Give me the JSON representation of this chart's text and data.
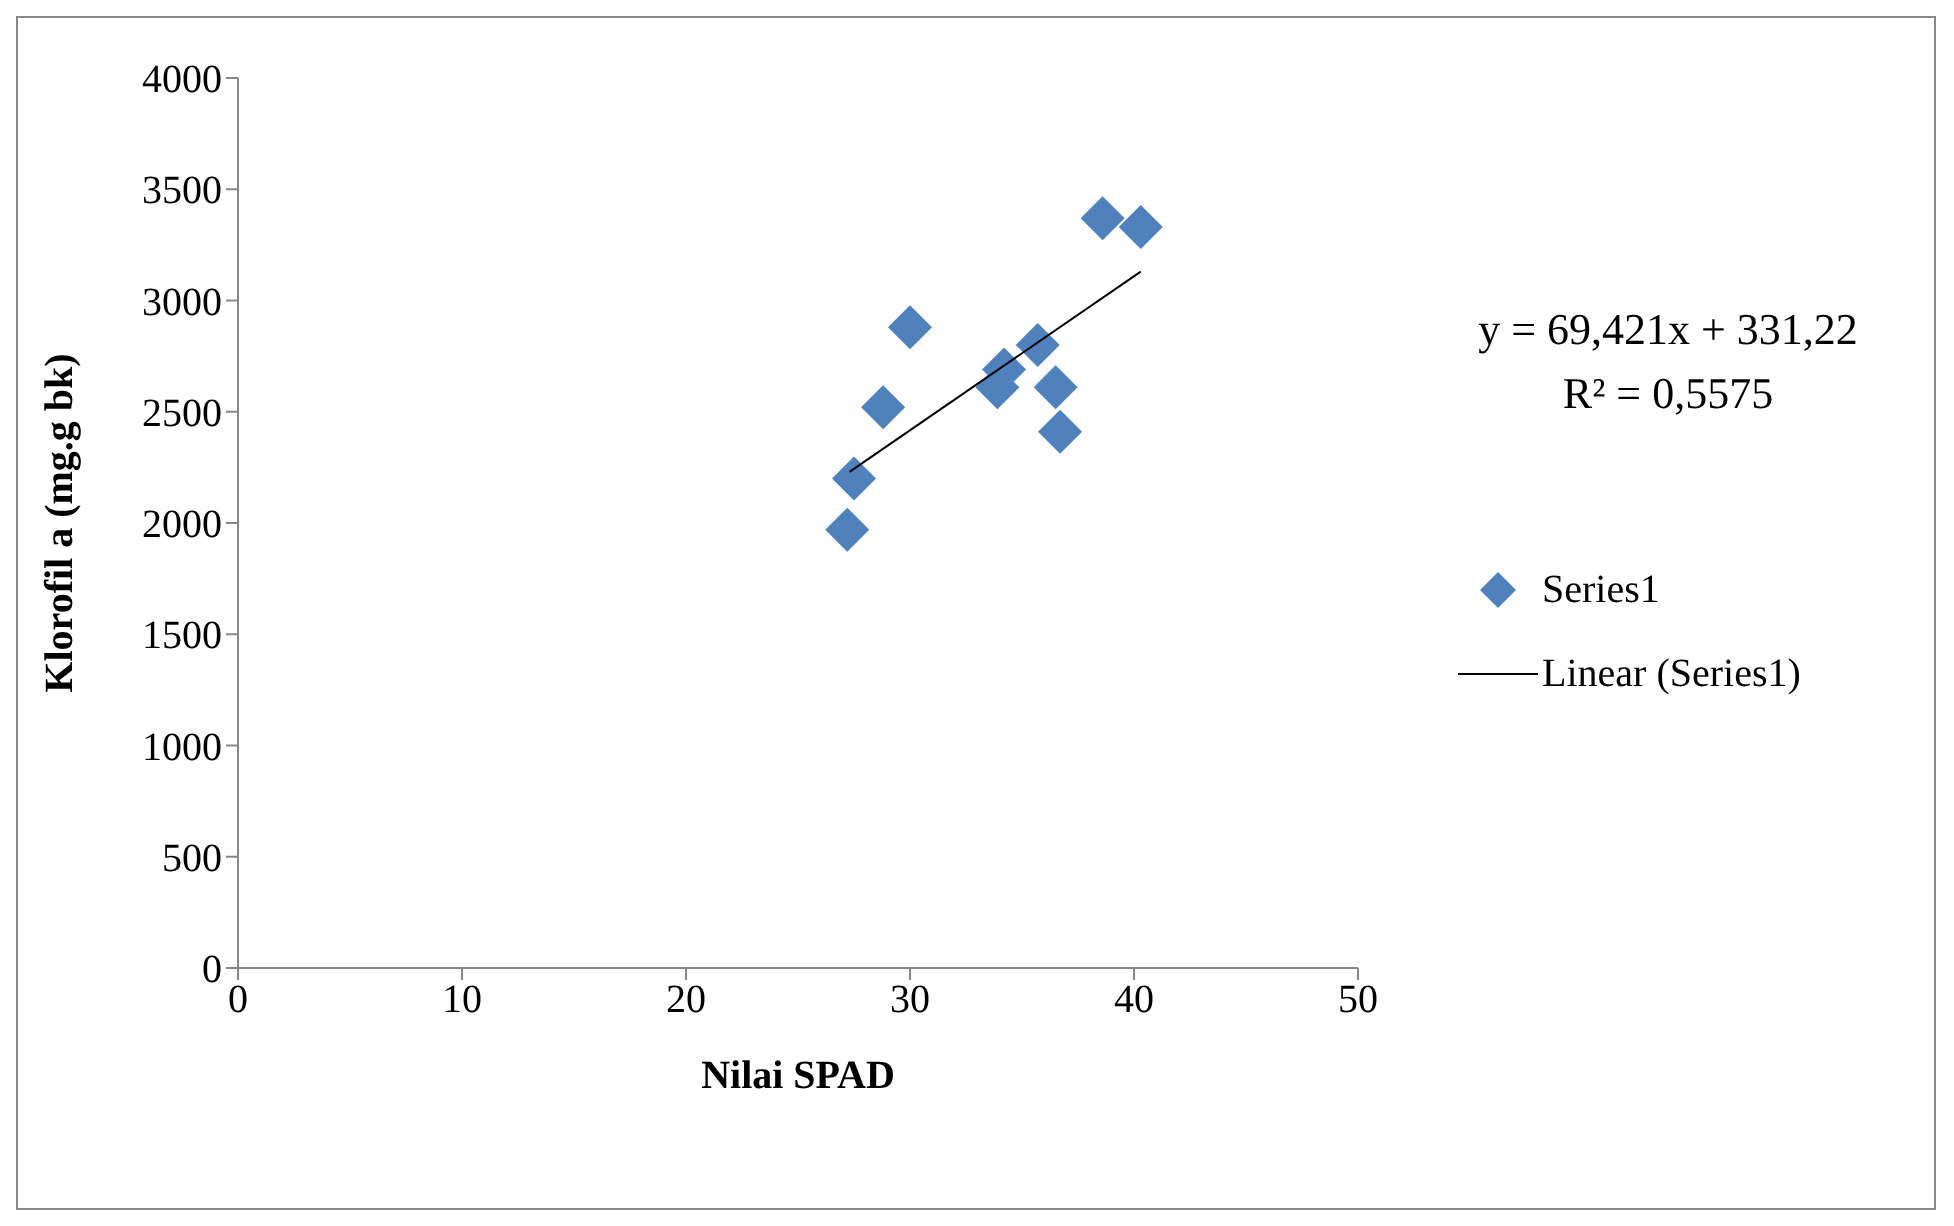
{
  "chart_data": {
    "type": "scatter",
    "xlabel": "Nilai SPAD",
    "ylabel": "Klorofil  a (mg.g bk)",
    "xlim": [
      0,
      50
    ],
    "xticks": [
      0,
      10,
      20,
      30,
      40,
      50
    ],
    "ylim": [
      0,
      4000
    ],
    "yticks": [
      0,
      500,
      1000,
      1500,
      2000,
      2500,
      3000,
      3500,
      4000
    ],
    "legend": "right",
    "series": [
      {
        "name": "Series1",
        "marker": "diamond",
        "color": "#4f81bd",
        "x": [
          27.2,
          27.5,
          28.8,
          30.0,
          33.9,
          34.2,
          35.7,
          36.5,
          36.7,
          38.6,
          40.3
        ],
        "values": [
          1970,
          2200,
          2520,
          2880,
          2610,
          2690,
          2800,
          2610,
          2410,
          3370,
          3330
        ]
      },
      {
        "name": "Linear (Series1)",
        "type": "line",
        "marker": "none",
        "color": "#000000",
        "x": [
          27.3,
          40.3
        ],
        "values": [
          2230,
          3130
        ]
      }
    ],
    "annotations": [
      "y = 69,421x + 331,22",
      "R² = 0,5575"
    ]
  }
}
